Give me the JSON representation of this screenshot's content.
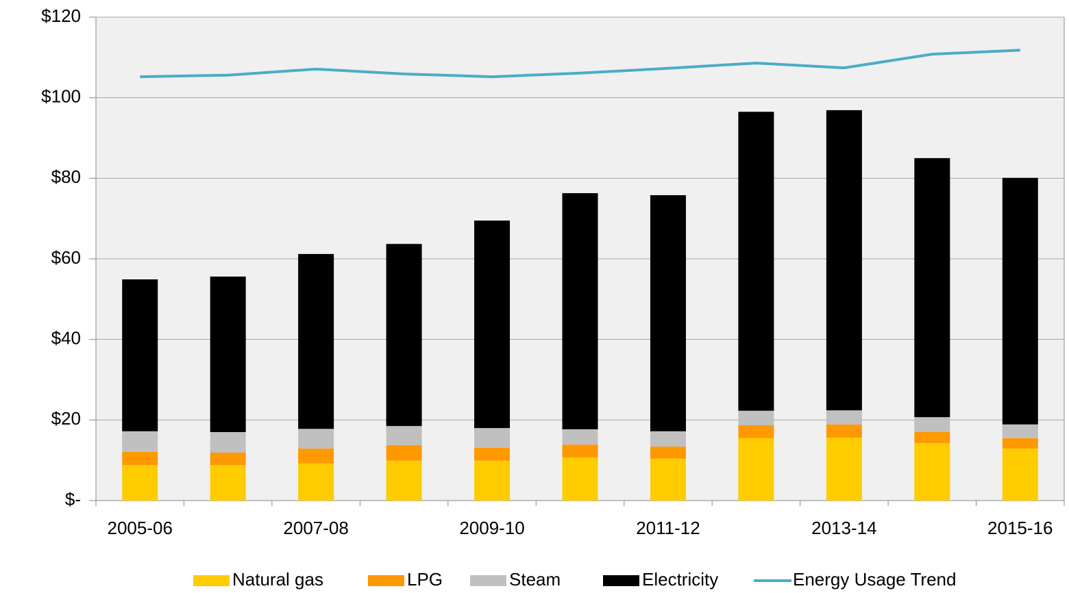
{
  "chart_data": {
    "type": "bar",
    "stacked": true,
    "categories": [
      "2005-06",
      null,
      "2007-08",
      null,
      "2009-10",
      null,
      "2011-12",
      null,
      "2013-14",
      null,
      "2015-16"
    ],
    "series": [
      {
        "name": "Natural gas",
        "color": "#ffcc00",
        "values": [
          8.8,
          8.8,
          9.2,
          9.9,
          9.9,
          10.7,
          10.4,
          15.5,
          15.6,
          14.3,
          12.9
        ]
      },
      {
        "name": "LPG",
        "color": "#ff9900",
        "values": [
          3.3,
          3.1,
          3.7,
          3.9,
          3.2,
          3.2,
          3.0,
          3.2,
          3.3,
          2.7,
          2.6
        ]
      },
      {
        "name": "Steam",
        "color": "#c0c0c0",
        "values": [
          5.1,
          5.1,
          4.9,
          4.7,
          4.9,
          3.8,
          3.8,
          3.6,
          3.5,
          3.7,
          3.4
        ]
      },
      {
        "name": "Electricity",
        "color": "#000000",
        "values": [
          37.7,
          38.6,
          43.4,
          45.2,
          51.5,
          58.6,
          58.6,
          74.2,
          74.5,
          64.3,
          61.2
        ]
      },
      {
        "name": "Energy Usage Trend",
        "type": "line",
        "color": "#4bacc6",
        "values": [
          105.2,
          105.6,
          107.1,
          105.9,
          105.2,
          106.1,
          107.3,
          108.6,
          107.4,
          110.8,
          111.8
        ]
      }
    ],
    "ylim": [
      0,
      120
    ],
    "yticks": [
      {
        "value": 0,
        "label": "$-"
      },
      {
        "value": 20,
        "label": "$20"
      },
      {
        "value": 40,
        "label": "$40"
      },
      {
        "value": 60,
        "label": "$60"
      },
      {
        "value": 80,
        "label": "$80"
      },
      {
        "value": 100,
        "label": "$100"
      },
      {
        "value": 120,
        "label": "$120"
      }
    ],
    "grid": true,
    "legend": "bottom"
  }
}
